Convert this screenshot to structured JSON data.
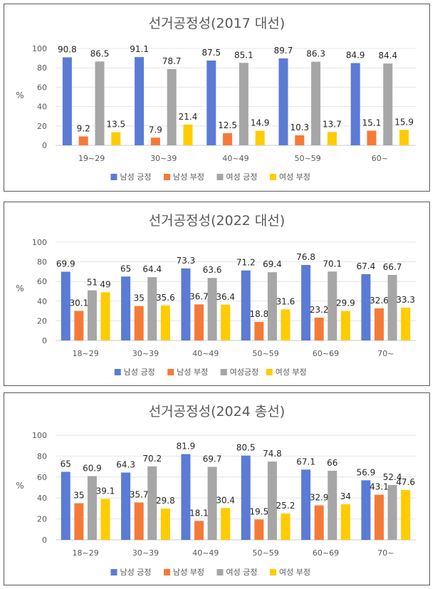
{
  "colors": {
    "male_pos": "#5B7BD5",
    "male_neg": "#F57A38",
    "female_pos": "#A6A6A6",
    "female_neg": "#FFCC00"
  },
  "chart_data": [
    {
      "type": "bar",
      "title": "선거공정성(2017 대선)",
      "ylabel": "%",
      "ylim": [
        0,
        100
      ],
      "yticks": [
        0,
        20,
        40,
        60,
        80,
        100
      ],
      "categories": [
        "19~29",
        "30~39",
        "40~49",
        "50~59",
        "60~"
      ],
      "legend_position": "bottom",
      "series": [
        {
          "name": "남성 긍정",
          "values": [
            90.8,
            91.1,
            87.5,
            89.7,
            84.9
          ]
        },
        {
          "name": "남성 부정",
          "values": [
            9.2,
            7.9,
            12.5,
            10.3,
            15.1
          ]
        },
        {
          "name": "여성 긍정",
          "values": [
            86.5,
            78.7,
            85.1,
            86.3,
            84.4
          ]
        },
        {
          "name": "여성 부정",
          "values": [
            13.5,
            21.4,
            14.9,
            13.7,
            15.9
          ]
        }
      ]
    },
    {
      "type": "bar",
      "title": "선거공정성(2022 대선)",
      "ylabel": "%",
      "ylim": [
        0,
        100
      ],
      "yticks": [
        0,
        20,
        40,
        60,
        80,
        100
      ],
      "categories": [
        "18~29",
        "30~39",
        "40~49",
        "50~59",
        "60~69",
        "70~"
      ],
      "legend_position": "bottom",
      "series": [
        {
          "name": "남성 긍정",
          "values": [
            69.9,
            65,
            73.3,
            71.2,
            76.8,
            67.4
          ]
        },
        {
          "name": "남성 부정",
          "values": [
            30.1,
            35,
            36.7,
            18.8,
            23.2,
            32.6
          ]
        },
        {
          "name": "여성긍정",
          "values": [
            51,
            64.4,
            63.6,
            69.4,
            70.1,
            66.7
          ]
        },
        {
          "name": "여성 부정",
          "values": [
            49,
            35.6,
            36.4,
            31.6,
            29.9,
            33.3
          ]
        }
      ]
    },
    {
      "type": "bar",
      "title": "선거공정성(2024 총선)",
      "ylabel": "%",
      "ylim": [
        0,
        100
      ],
      "yticks": [
        0,
        20,
        40,
        60,
        80,
        100
      ],
      "categories": [
        "18~29",
        "30~39",
        "40~49",
        "50~59",
        "60~69",
        "70~"
      ],
      "legend_position": "bottom",
      "series": [
        {
          "name": "남성 긍정",
          "values": [
            65,
            64.3,
            81.9,
            80.5,
            67.1,
            56.9
          ]
        },
        {
          "name": "남성 부정",
          "values": [
            35,
            35.7,
            18.1,
            19.5,
            32.9,
            43.1
          ]
        },
        {
          "name": "여성 긍정",
          "values": [
            60.9,
            70.2,
            69.7,
            74.8,
            66,
            52.4
          ]
        },
        {
          "name": "여성 부정",
          "values": [
            39.1,
            29.8,
            30.4,
            25.2,
            34,
            47.6
          ]
        }
      ]
    }
  ]
}
